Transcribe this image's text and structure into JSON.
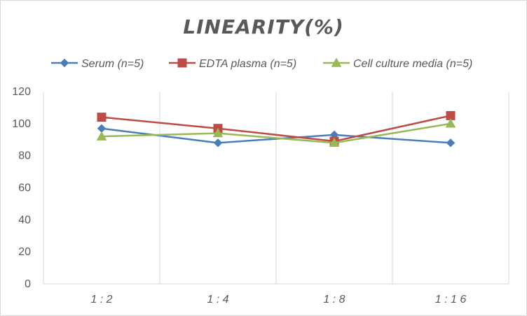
{
  "chart_data": {
    "type": "line",
    "title": "LINEARITY(%)",
    "xlabel": "",
    "ylabel": "",
    "categories": [
      "1:2",
      "1:4",
      "1:8",
      "1:16"
    ],
    "ylim": [
      0,
      120
    ],
    "yticks": [
      0,
      20,
      40,
      60,
      80,
      100,
      120
    ],
    "grid": "vertical",
    "legend_position": "top",
    "series": [
      {
        "name": "Serum (n=5)",
        "values": [
          97,
          88,
          93,
          88
        ],
        "color": "#4a7ebb",
        "marker": "diamond"
      },
      {
        "name": "EDTA plasma (n=5)",
        "values": [
          104,
          97,
          89,
          105
        ],
        "color": "#be4b48",
        "marker": "square"
      },
      {
        "name": "Cell culture media (n=5)",
        "values": [
          92,
          94,
          88,
          100
        ],
        "color": "#98b954",
        "marker": "triangle"
      }
    ]
  }
}
